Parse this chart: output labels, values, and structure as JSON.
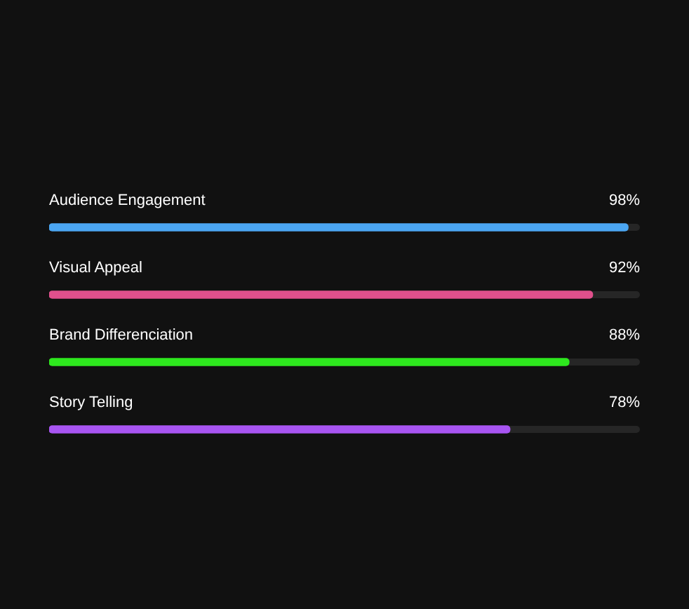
{
  "chart_data": {
    "type": "bar",
    "orientation": "horizontal",
    "categories": [
      "Audience Engagement",
      "Visual Appeal",
      "Brand Differenciation",
      "Story Telling"
    ],
    "values": [
      98,
      92,
      88,
      78
    ],
    "colors": [
      "#4ba6f2",
      "#e0508c",
      "#2ee81e",
      "#a855f2"
    ],
    "value_labels": [
      "98%",
      "92%",
      "88%",
      "78%"
    ],
    "xlim": [
      0,
      100
    ]
  }
}
